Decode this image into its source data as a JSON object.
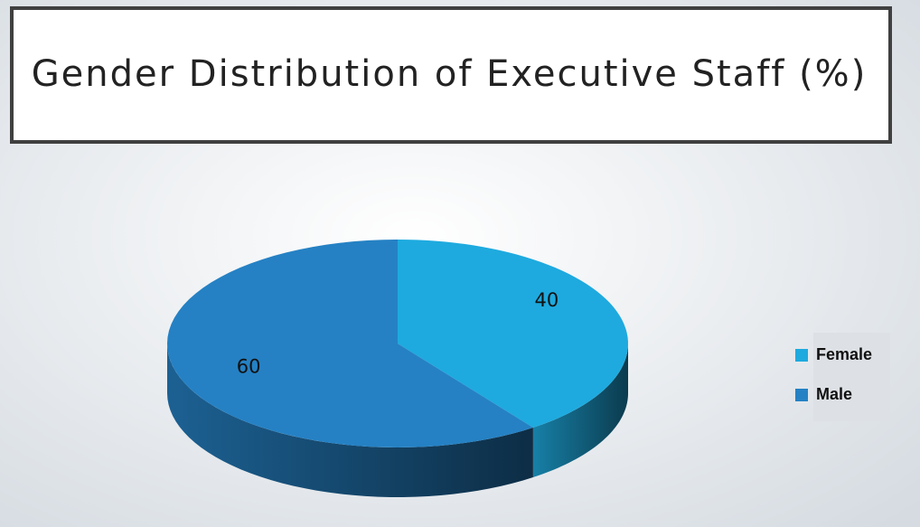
{
  "chart_data": {
    "type": "pie",
    "title": "Gender Distribution of Executive Staff (%)",
    "categories": [
      "Female",
      "Male"
    ],
    "values": [
      40,
      60
    ],
    "colors": [
      "#1eaadf",
      "#2581c4"
    ],
    "legend": "right",
    "three_d": true
  }
}
